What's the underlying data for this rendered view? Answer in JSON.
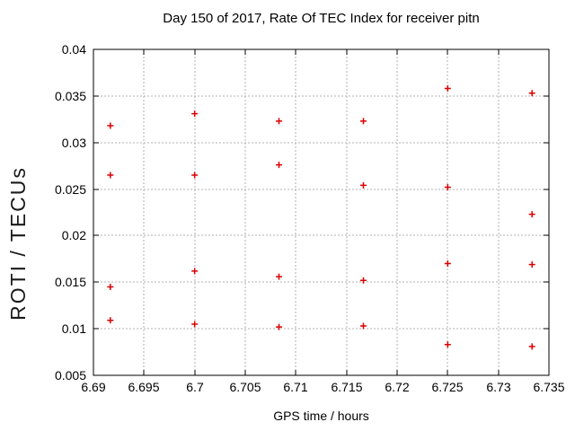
{
  "figure": {
    "title": "Day 150 of 2017, Rate Of TEC Index for receiver pitn",
    "xlabel": "GPS time / hours",
    "ylabel": "ROTI / TECUs"
  },
  "chart_data": {
    "type": "scatter",
    "title": "Day 150 of 2017, Rate Of TEC Index for receiver pitn",
    "xlabel": "GPS time / hours",
    "ylabel": "ROTI / TECUs",
    "xlim": [
      6.69,
      6.735
    ],
    "ylim": [
      0.005,
      0.04
    ],
    "xticks": {
      "values": [
        6.69,
        6.695,
        6.7,
        6.705,
        6.71,
        6.715,
        6.72,
        6.725,
        6.73,
        6.735
      ],
      "labels": [
        "6.69",
        "6.695",
        "6.7",
        "6.705",
        "6.71",
        "6.715",
        "6.72",
        "6.725",
        "6.73",
        "6.735"
      ]
    },
    "yticks": {
      "values": [
        0.005,
        0.01,
        0.015,
        0.02,
        0.025,
        0.03,
        0.035,
        0.04
      ],
      "labels": [
        "0.005",
        "0.01",
        "0.015",
        "0.02",
        "0.025",
        "0.03",
        "0.035",
        "0.04"
      ]
    },
    "grid": true,
    "legend": "none",
    "marker": {
      "shape": "plus",
      "color": "#dd0000",
      "size": 7
    },
    "series": [
      {
        "name": "ROTI",
        "points": [
          [
            6.69167,
            0.0318
          ],
          [
            6.69167,
            0.0265
          ],
          [
            6.69167,
            0.0145
          ],
          [
            6.69167,
            0.0109
          ],
          [
            6.7,
            0.0331
          ],
          [
            6.7,
            0.0265
          ],
          [
            6.7,
            0.0162
          ],
          [
            6.7,
            0.0105
          ],
          [
            6.70833,
            0.0323
          ],
          [
            6.70833,
            0.0276
          ],
          [
            6.70833,
            0.0156
          ],
          [
            6.70833,
            0.0102
          ],
          [
            6.71667,
            0.0323
          ],
          [
            6.71667,
            0.0254
          ],
          [
            6.71667,
            0.0152
          ],
          [
            6.71667,
            0.0103
          ],
          [
            6.725,
            0.0358
          ],
          [
            6.725,
            0.0252
          ],
          [
            6.725,
            0.017
          ],
          [
            6.725,
            0.0083
          ],
          [
            6.73333,
            0.0353
          ],
          [
            6.73333,
            0.0223
          ],
          [
            6.73333,
            0.0169
          ],
          [
            6.73333,
            0.0081
          ]
        ]
      }
    ]
  },
  "colors": {
    "background": "#ffffff",
    "grid": "#b0b0b0",
    "axis": "#000000",
    "text": "#000000",
    "marker_red": "#dd0000"
  }
}
